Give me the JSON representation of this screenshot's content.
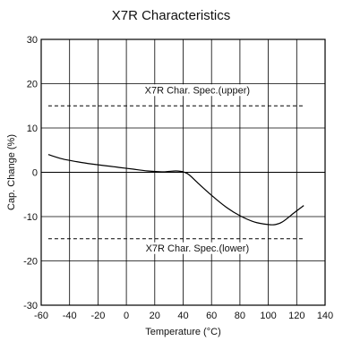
{
  "chart_data": {
    "type": "line",
    "title": "X7R Characteristics",
    "xlabel": "Temperature (°C)",
    "ylabel": "Cap. Change (%)",
    "xlim": [
      -60,
      140
    ],
    "ylim": [
      -30,
      30
    ],
    "x_ticks": [
      -60,
      -40,
      -20,
      0,
      20,
      40,
      60,
      80,
      100,
      120,
      140
    ],
    "y_ticks": [
      -30,
      -20,
      -10,
      0,
      10,
      20,
      30
    ],
    "grid": true,
    "series": [
      {
        "x": [
          -55,
          -45,
          -35,
          -25,
          -15,
          -5,
          5,
          15,
          25,
          30,
          35,
          40,
          44,
          50,
          60,
          70,
          80,
          90,
          100,
          105,
          110,
          118,
          125
        ],
        "y": [
          4.0,
          3.0,
          2.4,
          1.9,
          1.5,
          1.1,
          0.7,
          0.3,
          0.1,
          0.2,
          0.3,
          0.1,
          -0.5,
          -2.3,
          -5.2,
          -7.8,
          -9.8,
          -11.2,
          -11.8,
          -11.8,
          -11.2,
          -9.2,
          -7.5
        ]
      }
    ],
    "reference_lines": [
      {
        "label": "X7R Char. Spec.(upper)",
        "y": 15,
        "x_range": [
          -55,
          125
        ],
        "style": "dashed"
      },
      {
        "label": "X7R Char. Spec.(lower)",
        "y": -15,
        "x_range": [
          -55,
          125
        ],
        "style": "dashed"
      }
    ]
  }
}
